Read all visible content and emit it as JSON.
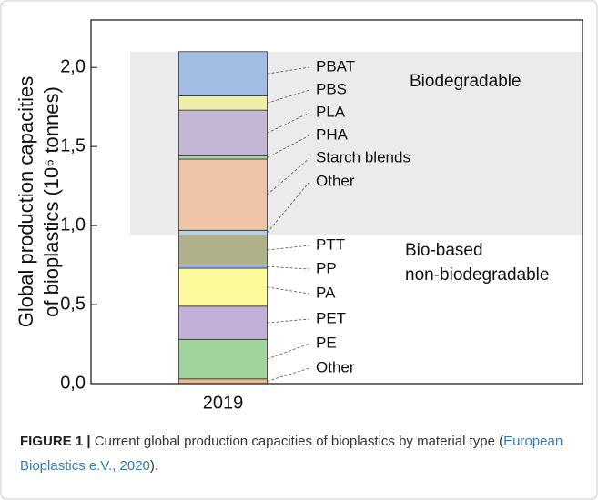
{
  "chart_data": {
    "type": "stacked-bar",
    "ylabel": [
      "Global production capacities",
      "of bioplastics (10⁶ tonnes)"
    ],
    "categories": [
      "2019"
    ],
    "series": [
      {
        "name": "Other",
        "color": "#f0b88a",
        "values": [
          0.03
        ]
      },
      {
        "name": "PE",
        "color": "#9fd49a",
        "values": [
          0.25
        ]
      },
      {
        "name": "PET",
        "color": "#c2b0d8",
        "values": [
          0.21
        ]
      },
      {
        "name": "PA",
        "color": "#fdfa9c",
        "values": [
          0.24
        ]
      },
      {
        "name": "PP",
        "color": "#8fb0e0",
        "values": [
          0.02
        ]
      },
      {
        "name": "PTT",
        "color": "#b0b08a",
        "values": [
          0.19
        ]
      },
      {
        "name": "Other",
        "color": "#a8d4e8",
        "values": [
          0.03
        ]
      },
      {
        "name": "Starch blends",
        "color": "#f0c4a6",
        "values": [
          0.45
        ]
      },
      {
        "name": "PHA",
        "color": "#a7cfa0",
        "values": [
          0.02
        ]
      },
      {
        "name": "PLA",
        "color": "#c3b7d3",
        "values": [
          0.29
        ]
      },
      {
        "name": "PBS",
        "color": "#eeeea8",
        "values": [
          0.09
        ]
      },
      {
        "name": "PBAT",
        "color": "#a3bde4",
        "values": [
          0.28
        ]
      }
    ],
    "ylim": [
      0,
      2.3
    ],
    "yticks": [
      {
        "value": 0,
        "label": "0,0"
      },
      {
        "value": 0.5,
        "label": "0,5"
      },
      {
        "value": 1.0,
        "label": "1,0"
      },
      {
        "value": 1.5,
        "label": "1,5"
      },
      {
        "value": 2.0,
        "label": "2,0"
      }
    ],
    "shaded_region": {
      "range": [
        0.94,
        2.1
      ],
      "color": "#ebebeb",
      "label": "Biodegradable"
    },
    "annotation": [
      "Bio-based",
      "non-biodegradable"
    ]
  },
  "caption": {
    "label": "FIGURE 1 |",
    "text": "Current global production capacities of bioplastics by material type (",
    "ref": "European Bioplastics e.V., 2020",
    "end": ")."
  }
}
